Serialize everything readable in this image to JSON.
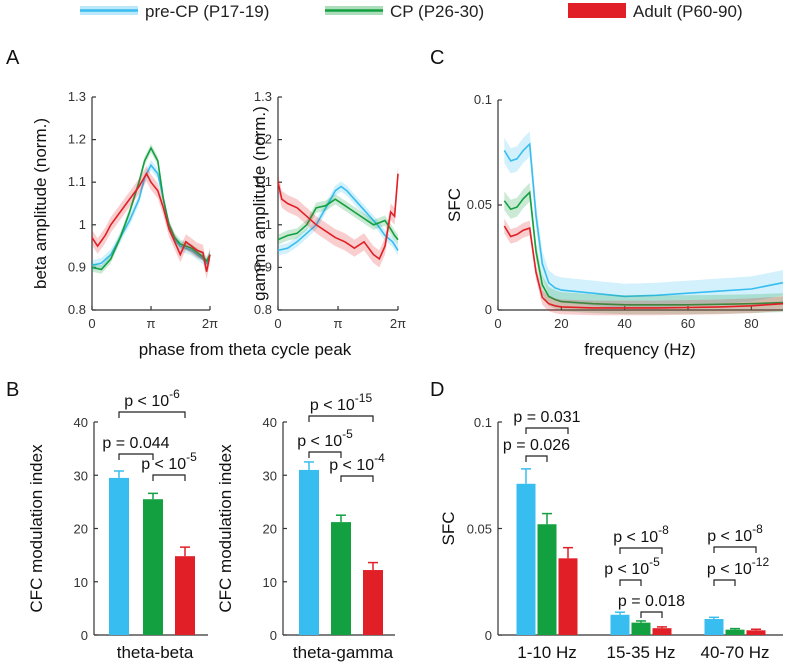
{
  "legend": [
    {
      "name": "pre-CP (P17-19)",
      "color": "#38bdf0"
    },
    {
      "name": "CP (P26-30)",
      "color": "#13a040"
    },
    {
      "name": "Adult (P60-90)",
      "color": "#e11f26"
    }
  ],
  "panel_letters": {
    "A": "A",
    "B": "B",
    "C": "C",
    "D": "D"
  },
  "chart_data": [
    {
      "id": "A1",
      "type": "line",
      "ylabel": "beta amplitude (norm.)",
      "xlabel": "phase from theta cycle peak",
      "ylim": [
        0.8,
        1.3
      ],
      "yticks": [
        0.8,
        0.9,
        1,
        1.1,
        1.2,
        1.3
      ],
      "xticks": [
        "0",
        "π",
        "2π"
      ],
      "series": [
        {
          "name": "pre-CP (P17-19)",
          "x": [
            0,
            0.5,
            1,
            1.5,
            2,
            2.5,
            2.8,
            3.14,
            3.5,
            3.8,
            4.1,
            4.4,
            4.7,
            5.0,
            5.3,
            5.6,
            5.9,
            6.1,
            6.28
          ],
          "y": [
            0.905,
            0.91,
            0.93,
            0.97,
            1.01,
            1.06,
            1.11,
            1.14,
            1.12,
            1.06,
            1.0,
            0.965,
            0.95,
            0.945,
            0.94,
            0.93,
            0.92,
            0.91,
            0.93
          ]
        },
        {
          "name": "CP (P26-30)",
          "x": [
            0,
            0.5,
            1,
            1.5,
            2,
            2.5,
            2.8,
            3.14,
            3.5,
            3.8,
            4.1,
            4.4,
            4.7,
            5.0,
            5.3,
            5.6,
            5.9,
            6.1,
            6.28
          ],
          "y": [
            0.9,
            0.895,
            0.92,
            0.97,
            1.03,
            1.1,
            1.15,
            1.18,
            1.15,
            1.06,
            1.0,
            0.97,
            0.955,
            0.95,
            0.945,
            0.935,
            0.925,
            0.915,
            0.93
          ]
        },
        {
          "name": "Adult (P60-90)",
          "x": [
            0,
            0.3,
            0.7,
            1,
            1.5,
            2,
            2.5,
            2.9,
            3.14,
            3.5,
            3.8,
            4.1,
            4.4,
            4.7,
            5.0,
            5.3,
            5.6,
            5.9,
            6.1,
            6.28
          ],
          "y": [
            0.97,
            0.95,
            0.975,
            1.0,
            1.03,
            1.06,
            1.09,
            1.12,
            1.1,
            1.08,
            1.04,
            0.99,
            0.96,
            0.93,
            0.96,
            0.95,
            0.94,
            0.935,
            0.89,
            0.93
          ]
        }
      ]
    },
    {
      "id": "A2",
      "type": "line",
      "ylabel": "gamma amplitude (norm.)",
      "ylim": [
        0.8,
        1.3
      ],
      "yticks": [
        0.8,
        0.9,
        1,
        1.1,
        1.2,
        1.3
      ],
      "xticks": [
        "0",
        "π",
        "2π"
      ],
      "series": [
        {
          "name": "pre-CP (P17-19)",
          "x": [
            0,
            0.5,
            1,
            1.5,
            2,
            2.5,
            3.0,
            3.3,
            3.6,
            4.0,
            4.4,
            4.8,
            5.2,
            5.6,
            6.0,
            6.28
          ],
          "y": [
            0.94,
            0.945,
            0.96,
            0.98,
            1.0,
            1.04,
            1.08,
            1.09,
            1.08,
            1.06,
            1.04,
            1.02,
            1.0,
            0.975,
            0.96,
            0.94
          ]
        },
        {
          "name": "CP (P26-30)",
          "x": [
            0,
            0.5,
            1,
            1.5,
            2,
            2.5,
            3.0,
            3.5,
            4.0,
            4.5,
            5.0,
            5.3,
            5.6,
            5.9,
            6.1,
            6.28
          ],
          "y": [
            0.965,
            0.975,
            0.98,
            1.0,
            1.04,
            1.045,
            1.06,
            1.045,
            1.03,
            1.015,
            1.0,
            1.005,
            1.01,
            0.99,
            0.975,
            0.965
          ]
        },
        {
          "name": "Adult (P60-90)",
          "x": [
            0,
            0.2,
            0.5,
            1,
            1.5,
            2,
            2.5,
            3.0,
            3.5,
            4.0,
            4.5,
            5.0,
            5.3,
            5.6,
            5.9,
            6.1,
            6.28
          ],
          "y": [
            1.1,
            1.06,
            1.05,
            1.04,
            1.02,
            1.0,
            0.985,
            0.97,
            0.96,
            0.945,
            0.96,
            0.93,
            0.92,
            0.95,
            1.03,
            1.02,
            1.12
          ]
        }
      ]
    },
    {
      "id": "C",
      "type": "line",
      "ylabel": "SFC",
      "xlabel": "frequency (Hz)",
      "xlim": [
        0,
        90
      ],
      "ylim": [
        0,
        0.1
      ],
      "xticks": [
        0,
        20,
        40,
        60,
        80
      ],
      "yticks": [
        0,
        0.05,
        0.1
      ],
      "yticklabels": [
        "0",
        "0.05",
        "0.1"
      ],
      "series": [
        {
          "name": "pre-CP (P17-19)",
          "x": [
            2,
            4,
            6,
            8,
            10,
            12,
            14,
            16,
            18,
            20,
            30,
            40,
            50,
            60,
            70,
            80,
            90
          ],
          "y": [
            0.076,
            0.071,
            0.072,
            0.076,
            0.079,
            0.045,
            0.022,
            0.013,
            0.0105,
            0.0095,
            0.008,
            0.0065,
            0.007,
            0.008,
            0.009,
            0.01,
            0.013
          ]
        },
        {
          "name": "CP (P26-30)",
          "x": [
            2,
            4,
            6,
            8,
            10,
            12,
            14,
            16,
            18,
            20,
            30,
            40,
            50,
            60,
            70,
            80,
            90
          ],
          "y": [
            0.052,
            0.048,
            0.049,
            0.053,
            0.056,
            0.028,
            0.012,
            0.0065,
            0.005,
            0.004,
            0.003,
            0.0025,
            0.0025,
            0.0025,
            0.0027,
            0.003,
            0.0035
          ]
        },
        {
          "name": "Adult (P60-90)",
          "x": [
            2,
            4,
            6,
            8,
            10,
            12,
            14,
            16,
            18,
            20,
            30,
            40,
            50,
            60,
            70,
            80,
            90
          ],
          "y": [
            0.04,
            0.035,
            0.036,
            0.038,
            0.039,
            0.018,
            0.006,
            0.003,
            0.002,
            0.0015,
            0.001,
            0.001,
            0.001,
            0.0012,
            0.0015,
            0.002,
            0.003
          ]
        }
      ]
    },
    {
      "id": "B1",
      "type": "bar",
      "ylabel": "CFC modulation index",
      "ylim": [
        0,
        40
      ],
      "yticks": [
        0,
        10,
        20,
        30,
        40
      ],
      "xlabel": "theta-beta",
      "values": [
        29.5,
        25.5,
        14.8
      ],
      "errors": [
        1.3,
        1.1,
        1.7
      ],
      "stats": [
        {
          "text": "p < 10",
          "exp": "-6",
          "from": 0,
          "to": 2,
          "level": 1
        },
        {
          "text": "p = 0.044",
          "from": 0,
          "to": 1,
          "level": 0
        },
        {
          "text": "p < 10",
          "exp": "-5",
          "from": 1,
          "to": 2,
          "level": 0
        }
      ]
    },
    {
      "id": "B2",
      "type": "bar",
      "ylabel": "CFC modulation index",
      "ylim": [
        0,
        40
      ],
      "yticks": [
        0,
        10,
        20,
        30,
        40
      ],
      "xlabel": "theta-gamma",
      "values": [
        31,
        21.2,
        12.2
      ],
      "errors": [
        1.5,
        1.3,
        1.4
      ],
      "stats": [
        {
          "text": "p < 10",
          "exp": "-15",
          "from": 0,
          "to": 2,
          "level": 1
        },
        {
          "text": "p < 10",
          "exp": "-5",
          "from": 0,
          "to": 1,
          "level": 0
        },
        {
          "text": "p < 10",
          "exp": "-4",
          "from": 1,
          "to": 2,
          "level": 0
        }
      ]
    },
    {
      "id": "D",
      "type": "bar",
      "ylabel": "SFC",
      "ylim": [
        0,
        0.1
      ],
      "yticks": [
        0,
        0.05,
        0.1
      ],
      "yticklabels": [
        "0",
        "0.05",
        "0.1"
      ],
      "categories": [
        "1-10 Hz",
        "15-35 Hz",
        "40-70 Hz"
      ],
      "series": [
        {
          "name": "pre-CP (P17-19)",
          "values": [
            0.071,
            0.0095,
            0.0075
          ],
          "errors": [
            0.007,
            0.0012,
            0.0008
          ]
        },
        {
          "name": "CP (P26-30)",
          "values": [
            0.052,
            0.0058,
            0.0025
          ],
          "errors": [
            0.005,
            0.0008,
            0.0005
          ]
        },
        {
          "name": "Adult (P60-90)",
          "values": [
            0.036,
            0.0032,
            0.0022
          ],
          "errors": [
            0.005,
            0.0006,
            0.0005
          ]
        }
      ],
      "stats": [
        {
          "text": "p = 0.031",
          "group": 0,
          "from": 0,
          "to": 2,
          "level": 1
        },
        {
          "text": "p = 0.026",
          "group": 0,
          "from": 0,
          "to": 1,
          "level": 0
        },
        {
          "text": "p < 10",
          "exp": "-8",
          "group": 1,
          "from": 0,
          "to": 2,
          "level": 2
        },
        {
          "text": "p < 10",
          "exp": "-5",
          "group": 1,
          "from": 0,
          "to": 1,
          "level": 1
        },
        {
          "text": "p = 0.018",
          "group": 1,
          "from": 1,
          "to": 2,
          "level": 0
        },
        {
          "text": "p < 10",
          "exp": "-8",
          "group": 2,
          "from": 0,
          "to": 2,
          "level": 1
        },
        {
          "text": "p < 10",
          "exp": "-12",
          "group": 2,
          "from": 0,
          "to": 1,
          "level": 0
        }
      ]
    }
  ]
}
